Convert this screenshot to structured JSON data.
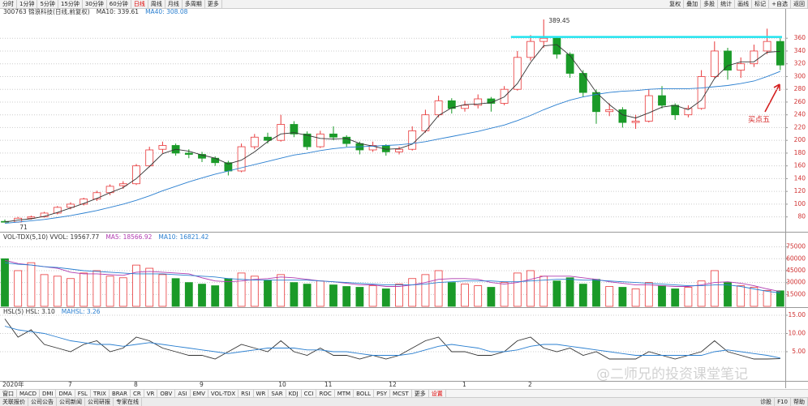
{
  "toolbar_left": [
    "分时",
    "1分钟",
    "5分钟",
    "15分钟",
    "30分钟",
    "60分钟",
    "日线",
    "周线",
    "月线",
    "多周期",
    "更多"
  ],
  "toolbar_right": [
    "复权",
    "叠加",
    "多股",
    "统计",
    "画线",
    "标记",
    "+自选",
    "返回"
  ],
  "date_labels": [
    "2020年",
    "7",
    "8",
    "9",
    "10",
    "11",
    "12",
    "1",
    "2"
  ],
  "tabs": [
    "窗口",
    "MACD",
    "DMI",
    "DMA",
    "FSL",
    "TRIX",
    "BRAR",
    "CR",
    "VR",
    "OBV",
    "ASI",
    "EMV",
    "VOL-TDX",
    "RSI",
    "WR",
    "SAR",
    "KDJ",
    "CCI",
    "ROC",
    "MTM",
    "BOLL",
    "PSY",
    "MCST",
    "更多",
    "设置"
  ],
  "footer_left": [
    "关联报价",
    "公司公告",
    "公司新闻",
    "公司研报",
    "专家在线"
  ],
  "footer_right": [
    "诊股",
    "F10",
    "帮助"
  ],
  "watermark": "@二师兄的投资课堂笔记",
  "chart_data": [
    {
      "type": "candlestick",
      "header": [
        {
          "text": "300763 锦浪科技(日线,前复权)",
          "color": "#333333"
        },
        {
          "text": "MA10: 339.61",
          "color": "#333333"
        },
        {
          "text": "MA40: 308.08",
          "color": "#2a7fd0"
        }
      ],
      "up_color": "#e8383a",
      "down_color": "#1a9a28",
      "candles": [
        [
          73,
          76,
          71.57,
          72
        ],
        [
          72,
          80,
          71,
          78
        ],
        [
          78,
          82,
          76,
          80
        ],
        [
          80,
          88,
          79,
          86
        ],
        [
          86,
          97,
          84,
          95
        ],
        [
          95,
          103,
          92,
          100
        ],
        [
          100,
          110,
          98,
          108
        ],
        [
          108,
          121,
          105,
          118
        ],
        [
          118,
          131,
          114,
          128
        ],
        [
          129,
          136,
          124,
          132
        ],
        [
          132,
          163,
          130,
          160
        ],
        [
          160,
          190,
          158,
          185
        ],
        [
          186,
          198,
          180,
          192
        ],
        [
          192,
          195,
          176,
          180
        ],
        [
          180,
          186,
          172,
          178
        ],
        [
          178,
          182,
          166,
          172
        ],
        [
          172,
          175,
          160,
          165
        ],
        [
          165,
          168,
          145,
          152
        ],
        [
          152,
          195,
          150,
          190
        ],
        [
          190,
          210,
          186,
          205
        ],
        [
          205,
          212,
          195,
          200
        ],
        [
          200,
          240,
          198,
          225
        ],
        [
          225,
          230,
          205,
          210
        ],
        [
          210,
          214,
          185,
          190
        ],
        [
          190,
          215,
          188,
          210
        ],
        [
          210,
          222,
          200,
          205
        ],
        [
          205,
          208,
          190,
          195
        ],
        [
          195,
          198,
          178,
          185
        ],
        [
          185,
          198,
          182,
          192
        ],
        [
          192,
          194,
          176,
          182
        ],
        [
          182,
          190,
          178,
          186
        ],
        [
          186,
          222,
          184,
          215
        ],
        [
          215,
          248,
          212,
          240
        ],
        [
          240,
          270,
          236,
          262
        ],
        [
          262,
          266,
          242,
          250
        ],
        [
          250,
          262,
          245,
          255
        ],
        [
          255,
          272,
          250,
          265
        ],
        [
          265,
          268,
          245,
          258
        ],
        [
          258,
          285,
          255,
          280
        ],
        [
          280,
          340,
          278,
          330
        ],
        [
          330,
          365,
          325,
          355
        ],
        [
          355,
          389.45,
          345,
          360
        ],
        [
          360,
          362,
          328,
          335
        ],
        [
          335,
          338,
          298,
          305
        ],
        [
          305,
          310,
          268,
          275
        ],
        [
          275,
          280,
          226,
          245
        ],
        [
          245,
          258,
          238,
          248
        ],
        [
          248,
          252,
          220,
          228
        ],
        [
          228,
          240,
          218,
          230
        ],
        [
          230,
          280,
          228,
          270
        ],
        [
          270,
          285,
          250,
          255
        ],
        [
          255,
          258,
          232,
          240
        ],
        [
          240,
          255,
          236,
          250
        ],
        [
          250,
          310,
          248,
          300
        ],
        [
          300,
          355,
          298,
          340
        ],
        [
          340,
          345,
          295,
          310
        ],
        [
          310,
          330,
          298,
          320
        ],
        [
          320,
          350,
          315,
          340
        ],
        [
          340,
          375,
          335,
          355
        ],
        [
          355,
          360,
          310,
          318
        ]
      ],
      "series": [
        {
          "name": "MA10",
          "color": "#333333",
          "values": [
            72,
            75,
            77,
            81,
            87,
            94,
            101,
            109,
            118,
            126,
            140,
            159,
            179,
            186,
            183,
            177,
            172,
            163,
            169,
            182,
            198,
            210,
            212,
            208,
            203,
            202,
            203,
            195,
            191,
            186,
            187,
            194,
            214,
            239,
            251,
            256,
            257,
            259,
            268,
            289,
            322,
            348,
            350,
            333,
            305,
            275,
            256,
            240,
            235,
            243,
            252,
            255,
            248,
            263,
            297,
            317,
            323,
            323,
            338,
            339.61
          ]
        },
        {
          "name": "MA40",
          "color": "#2a7fd0",
          "values": [
            70,
            72,
            74,
            76,
            79,
            82,
            86,
            90,
            95,
            100,
            106,
            113,
            121,
            128,
            135,
            141,
            147,
            152,
            157,
            162,
            167,
            172,
            177,
            180,
            184,
            187,
            189,
            190,
            191,
            192,
            193,
            195,
            198,
            202,
            206,
            210,
            214,
            219,
            224,
            231,
            239,
            248,
            256,
            263,
            268,
            272,
            275,
            277,
            278,
            280,
            281,
            281,
            281,
            282,
            284,
            286,
            289,
            293,
            300,
            308.08
          ]
        }
      ],
      "hline": {
        "value": 362,
        "color": "#22e3ee"
      },
      "annotation": "买点五",
      "ylim": [
        58,
        392
      ],
      "yticks": [
        80,
        100,
        120,
        140,
        160,
        180,
        200,
        220,
        240,
        260,
        280,
        300,
        320,
        340,
        360
      ]
    },
    {
      "type": "bar",
      "header": [
        {
          "text": "VOL-TDX(5,10) VVOL: 19567.77",
          "color": "#333333"
        },
        {
          "text": "MA5: 18566.92",
          "color": "#b03cb0"
        },
        {
          "text": "MA10: 16821.42",
          "color": "#2a7fd0"
        }
      ],
      "values": [
        60000,
        45000,
        55000,
        40000,
        38000,
        35000,
        42000,
        45000,
        38000,
        36000,
        52000,
        48000,
        40000,
        35000,
        30000,
        28000,
        26000,
        35000,
        42000,
        38000,
        33000,
        40000,
        30000,
        28000,
        32000,
        27000,
        25000,
        24000,
        26000,
        22000,
        28000,
        35000,
        40000,
        45000,
        30000,
        28000,
        26000,
        24000,
        30000,
        42000,
        45000,
        38000,
        32000,
        36000,
        28000,
        34000,
        25000,
        24000,
        22000,
        30000,
        26000,
        22000,
        24000,
        32000,
        45000,
        30000,
        26000,
        24000,
        20000,
        19567.77
      ],
      "series": [
        {
          "name": "MA5",
          "color": "#b03cb0",
          "values": [
            58000,
            54000,
            52000,
            50000,
            48000,
            43000,
            41000,
            41000,
            40000,
            39000,
            43000,
            44000,
            43000,
            42000,
            41000,
            36000,
            32000,
            31000,
            32000,
            34000,
            35000,
            37000,
            36000,
            34000,
            32000,
            31000,
            29000,
            27000,
            27000,
            25000,
            25000,
            27000,
            30000,
            34000,
            35000,
            35000,
            34000,
            30000,
            28000,
            30000,
            34000,
            38000,
            38000,
            38000,
            36000,
            34000,
            31000,
            29000,
            27000,
            27000,
            26000,
            25000,
            25000,
            27000,
            30000,
            31000,
            29000,
            26000,
            22000,
            18566.92
          ]
        },
        {
          "name": "MA10",
          "color": "#2a7fd0",
          "values": [
            55000,
            53000,
            52000,
            50000,
            49000,
            47000,
            45000,
            44000,
            43000,
            42000,
            41000,
            41000,
            41000,
            40000,
            39000,
            38000,
            37000,
            35000,
            34000,
            33000,
            33000,
            33000,
            33000,
            33000,
            32000,
            31000,
            30000,
            29000,
            28000,
            27000,
            27000,
            27000,
            28000,
            30000,
            31000,
            32000,
            32000,
            32000,
            31000,
            31000,
            32000,
            33000,
            34000,
            34000,
            33000,
            33000,
            32000,
            31000,
            30000,
            29000,
            28000,
            27000,
            26000,
            26000,
            27000,
            27000,
            25000,
            22000,
            19000,
            16821.42
          ]
        }
      ],
      "ylim": [
        0,
        93000
      ],
      "yticks": [
        15000,
        30000,
        45000,
        60000,
        75000
      ]
    },
    {
      "type": "line",
      "header": [
        {
          "text": "HSL(5) HSL: 3.10",
          "color": "#333333"
        },
        {
          "text": "MAHSL: 3.26",
          "color": "#2a7fd0"
        }
      ],
      "series": [
        {
          "name": "HSL",
          "color": "#333333",
          "values": [
            14,
            9,
            11,
            7,
            6,
            5,
            7,
            8,
            5,
            6,
            9,
            8,
            6,
            5,
            4,
            4,
            3,
            5,
            7,
            6,
            5,
            8,
            5,
            4,
            6,
            4,
            4,
            3,
            4,
            3,
            4,
            6,
            8,
            9,
            5,
            5,
            4,
            4,
            5,
            8,
            9,
            6,
            5,
            6,
            4,
            5,
            3,
            3,
            3,
            5,
            4,
            3,
            4,
            5,
            8,
            5,
            4,
            3,
            3,
            3.1
          ]
        },
        {
          "name": "MAHSL",
          "color": "#2a7fd0",
          "values": [
            12,
            11,
            10.5,
            10,
            9,
            8,
            7.5,
            7,
            7,
            6.5,
            7,
            7.5,
            7,
            6.5,
            6,
            5.5,
            5,
            4.5,
            5,
            5.5,
            6,
            6,
            6,
            5.5,
            5.5,
            5,
            5,
            4.5,
            4,
            4,
            4,
            4.5,
            5.5,
            6.5,
            7,
            6.5,
            6,
            5,
            5,
            5.5,
            6.5,
            7,
            7,
            6.5,
            6,
            5.5,
            5,
            4.5,
            4,
            4,
            4,
            4,
            4,
            4,
            5,
            5.5,
            5,
            4.5,
            4,
            3.26
          ]
        }
      ],
      "ylim": [
        -3,
        17
      ],
      "yticks": [
        {
          "value": 5,
          "label": "5.00"
        },
        {
          "value": 10,
          "label": "10.00"
        },
        {
          "value": 15,
          "label": "15.00"
        }
      ]
    }
  ]
}
